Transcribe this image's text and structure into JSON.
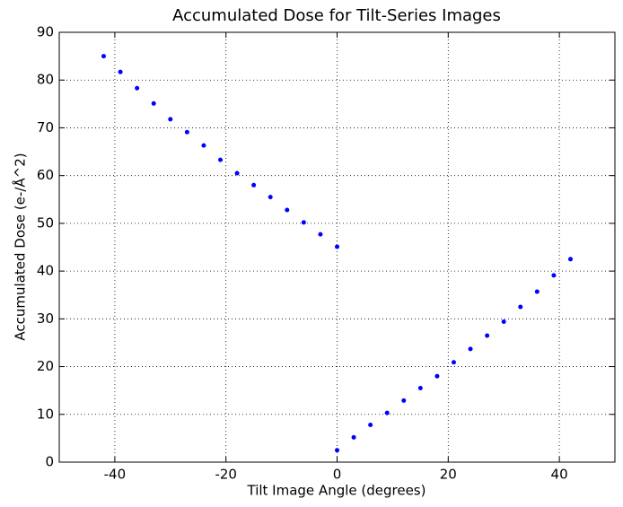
{
  "chart_data": {
    "type": "scatter",
    "title": "Accumulated Dose for Tilt-Series Images",
    "xlabel": "Tilt Image Angle (degrees)",
    "ylabel": "Accumulated Dose (e-/Å^2)",
    "x": [
      -42,
      -39,
      -36,
      -33,
      -30,
      -27,
      -24,
      -21,
      -18,
      -15,
      -12,
      -9,
      -6,
      -3,
      0,
      0,
      3,
      6,
      9,
      12,
      15,
      18,
      21,
      24,
      27,
      30,
      33,
      36,
      39,
      42
    ],
    "series": [
      {
        "color": "#0000ff",
        "values": [
          85,
          81.7,
          78.3,
          75.1,
          71.8,
          69.1,
          66.3,
          63.3,
          60.5,
          58.0,
          55.5,
          52.8,
          50.2,
          47.7,
          45.1,
          2.5,
          5.2,
          7.8,
          10.3,
          12.9,
          15.5,
          18.0,
          20.9,
          23.7,
          26.5,
          29.4,
          32.5,
          35.7,
          39.1,
          42.5
        ]
      }
    ],
    "xlim": [
      -50,
      50
    ],
    "xticks": [
      -40,
      -20,
      0,
      20,
      40
    ],
    "ylim": [
      0,
      90
    ],
    "yticks": [
      0,
      10,
      20,
      30,
      40,
      50,
      60,
      70,
      80,
      90
    ],
    "grid": true
  }
}
